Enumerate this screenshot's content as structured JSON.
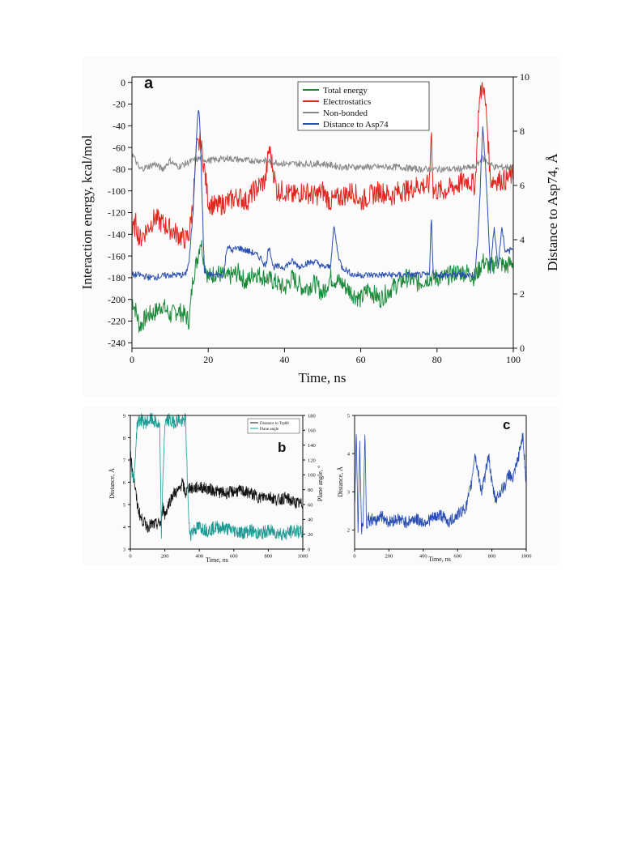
{
  "chart_data": [
    {
      "panel": "a",
      "type": "line",
      "x_label": "Time, ns",
      "y_label": "Interaction energy, kcal/mol",
      "y2_label": "Distance to Asp74, Å",
      "x_range": [
        0,
        100
      ],
      "y_range": [
        -245,
        5
      ],
      "y2_range": [
        0,
        10
      ],
      "x_ticks": [
        0,
        20,
        40,
        60,
        80,
        100
      ],
      "y_ticks": [
        0,
        -20,
        -40,
        -60,
        -80,
        -100,
        -120,
        -140,
        -160,
        -180,
        -200,
        -220,
        -240
      ],
      "y2_ticks": [
        0,
        2,
        4,
        6,
        8,
        10
      ],
      "legend_position": "top-center",
      "series": [
        {
          "name": "Total energy",
          "color": "#1a8a3a",
          "axis": "left",
          "x": [
            0,
            1,
            2,
            4,
            6,
            8,
            10,
            12,
            14,
            15,
            16,
            17,
            18,
            19,
            20,
            22,
            25,
            28,
            30,
            32,
            35,
            38,
            40,
            42,
            45,
            48,
            50,
            52,
            55,
            58,
            60,
            62,
            65,
            68,
            70,
            72,
            75,
            78,
            80,
            82,
            85,
            88,
            90,
            92,
            94,
            96,
            98,
            100
          ],
          "y": [
            -200,
            -210,
            -225,
            -215,
            -212,
            -205,
            -215,
            -210,
            -215,
            -220,
            -180,
            -165,
            -145,
            -165,
            -180,
            -175,
            -180,
            -175,
            -185,
            -175,
            -180,
            -185,
            -190,
            -180,
            -190,
            -185,
            -195,
            -180,
            -185,
            -195,
            -200,
            -190,
            -200,
            -190,
            -185,
            -180,
            -185,
            -180,
            -180,
            -180,
            -175,
            -175,
            -180,
            -165,
            -170,
            -165,
            -170,
            -165
          ]
        },
        {
          "name": "Electrostatics",
          "color": "#e0261e",
          "axis": "left",
          "x": [
            0,
            1,
            2,
            4,
            6,
            8,
            10,
            12,
            14,
            15,
            16,
            17,
            18,
            19,
            20,
            22,
            25,
            28,
            30,
            32,
            35,
            36,
            38,
            40,
            42,
            45,
            48,
            50,
            52,
            55,
            58,
            60,
            62,
            65,
            68,
            70,
            72,
            75,
            78,
            78.5,
            79,
            80,
            82,
            85,
            88,
            90,
            91,
            92,
            93,
            94,
            96,
            98,
            100
          ],
          "y": [
            -140,
            -130,
            -145,
            -135,
            -125,
            -130,
            -135,
            -140,
            -145,
            -140,
            -110,
            -60,
            -55,
            -80,
            -110,
            -115,
            -110,
            -105,
            -110,
            -100,
            -90,
            -60,
            -100,
            -100,
            -105,
            -100,
            -105,
            -100,
            -110,
            -105,
            -100,
            -110,
            -105,
            -100,
            -105,
            -100,
            -100,
            -95,
            -95,
            -40,
            -100,
            -100,
            -100,
            -95,
            -90,
            -95,
            -20,
            0,
            -30,
            -90,
            -90,
            -90,
            -85
          ]
        },
        {
          "name": "Non-bonded",
          "color": "#888888",
          "axis": "left",
          "x": [
            0,
            2,
            4,
            6,
            8,
            10,
            12,
            14,
            16,
            18,
            20,
            25,
            30,
            35,
            40,
            45,
            50,
            55,
            60,
            65,
            70,
            75,
            80,
            85,
            90,
            92,
            95,
            100
          ],
          "y": [
            -65,
            -80,
            -78,
            -75,
            -80,
            -72,
            -78,
            -75,
            -72,
            -70,
            -72,
            -70,
            -72,
            -72,
            -75,
            -75,
            -75,
            -78,
            -78,
            -78,
            -78,
            -80,
            -80,
            -80,
            -78,
            -70,
            -78,
            -78
          ]
        },
        {
          "name": "Distance to Asp74",
          "color": "#2a4fb0",
          "axis": "right",
          "x": [
            0,
            2,
            5,
            10,
            14,
            15,
            16,
            17,
            17.5,
            18,
            18.5,
            19,
            20,
            22,
            24,
            25,
            26,
            28,
            30,
            32,
            34,
            35,
            36,
            37,
            40,
            42,
            44,
            45,
            48,
            50,
            52,
            53,
            54,
            55,
            58,
            60,
            65,
            70,
            75,
            78,
            78.5,
            79,
            80,
            85,
            90,
            91,
            92,
            93,
            94,
            95,
            96,
            97,
            98,
            100
          ],
          "y": [
            2.7,
            2.7,
            2.6,
            2.7,
            2.7,
            3.2,
            5.0,
            8.0,
            9.0,
            7.5,
            5.0,
            2.8,
            2.7,
            2.7,
            2.7,
            3.8,
            3.6,
            3.7,
            3.6,
            3.5,
            3.3,
            3.0,
            3.8,
            3.0,
            3.0,
            3.2,
            3.0,
            3.1,
            3.2,
            3.0,
            3.0,
            4.5,
            3.5,
            3.0,
            2.7,
            2.7,
            2.7,
            2.7,
            2.7,
            2.7,
            5.0,
            2.7,
            2.7,
            2.7,
            2.7,
            4.8,
            8.2,
            6.0,
            2.8,
            4.5,
            3.0,
            4.5,
            3.5,
            3.7
          ]
        }
      ]
    },
    {
      "panel": "b",
      "type": "line",
      "x_label": "Time, ns",
      "y_label": "Distance, Å",
      "y2_label": "Plane angle, °",
      "x_range": [
        0,
        1000
      ],
      "y_range": [
        3,
        9
      ],
      "y2_range": [
        0,
        180
      ],
      "x_ticks": [
        0,
        200,
        400,
        600,
        800,
        1000
      ],
      "y_ticks": [
        3,
        4,
        5,
        6,
        7,
        8,
        9
      ],
      "y2_ticks": [
        0,
        20,
        40,
        60,
        80,
        100,
        120,
        140,
        160,
        180
      ],
      "legend_position": "top-right",
      "series": [
        {
          "name": "Distance to Trp86",
          "color": "#111111",
          "axis": "left",
          "x": [
            0,
            20,
            40,
            60,
            80,
            100,
            120,
            150,
            180,
            190,
            200,
            220,
            250,
            280,
            300,
            320,
            340,
            360,
            400,
            450,
            500,
            550,
            600,
            650,
            700,
            750,
            800,
            850,
            900,
            950,
            1000
          ],
          "y": [
            7.2,
            6.2,
            5.0,
            4.4,
            4.2,
            4.0,
            4.1,
            4.1,
            4.2,
            5.0,
            4.5,
            5.0,
            5.5,
            5.6,
            6.0,
            5.5,
            5.8,
            5.7,
            5.8,
            5.7,
            5.6,
            5.5,
            5.6,
            5.6,
            5.5,
            5.3,
            5.4,
            5.2,
            5.3,
            5.1,
            5.0
          ]
        },
        {
          "name": "Plane angle",
          "color": "#1a9a92",
          "axis": "right",
          "x": [
            0,
            20,
            40,
            60,
            80,
            100,
            120,
            150,
            170,
            180,
            190,
            200,
            220,
            240,
            260,
            280,
            300,
            320,
            330,
            340,
            350,
            360,
            400,
            450,
            500,
            550,
            600,
            650,
            700,
            750,
            800,
            850,
            900,
            950,
            1000
          ],
          "y": [
            120,
            90,
            170,
            175,
            170,
            172,
            175,
            170,
            165,
            20,
            100,
            170,
            175,
            170,
            172,
            175,
            170,
            175,
            100,
            30,
            20,
            25,
            30,
            25,
            30,
            28,
            25,
            22,
            25,
            20,
            25,
            22,
            20,
            25,
            22
          ]
        }
      ]
    },
    {
      "panel": "c",
      "type": "line",
      "x_label": "Time, ns",
      "y_label": "Distance, Å",
      "x_range": [
        0,
        1000
      ],
      "y_range": [
        1.5,
        5
      ],
      "x_ticks": [
        0,
        200,
        400,
        600,
        800,
        1000
      ],
      "y_ticks": [
        2,
        3,
        4,
        5
      ],
      "series": [
        {
          "color": "#2a4fb0",
          "axis": "left",
          "x": [
            0,
            10,
            20,
            30,
            40,
            50,
            60,
            70,
            80,
            90,
            100,
            120,
            150,
            200,
            250,
            300,
            350,
            400,
            450,
            500,
            550,
            600,
            650,
            680,
            700,
            720,
            740,
            760,
            780,
            800,
            820,
            850,
            880,
            900,
            920,
            950,
            980,
            1000
          ],
          "y": [
            2.5,
            4.6,
            2.0,
            4.3,
            2.0,
            2.2,
            4.6,
            2.0,
            2.4,
            2.2,
            2.3,
            2.2,
            2.4,
            2.2,
            2.3,
            2.2,
            2.3,
            2.2,
            2.3,
            2.4,
            2.2,
            2.4,
            2.6,
            3.2,
            4.0,
            3.5,
            3.0,
            3.4,
            4.0,
            3.2,
            2.8,
            3.0,
            3.2,
            3.5,
            3.3,
            3.8,
            4.5,
            3.2
          ]
        }
      ]
    }
  ],
  "panel_letters": {
    "a": "a",
    "b": "b",
    "c": "c"
  }
}
